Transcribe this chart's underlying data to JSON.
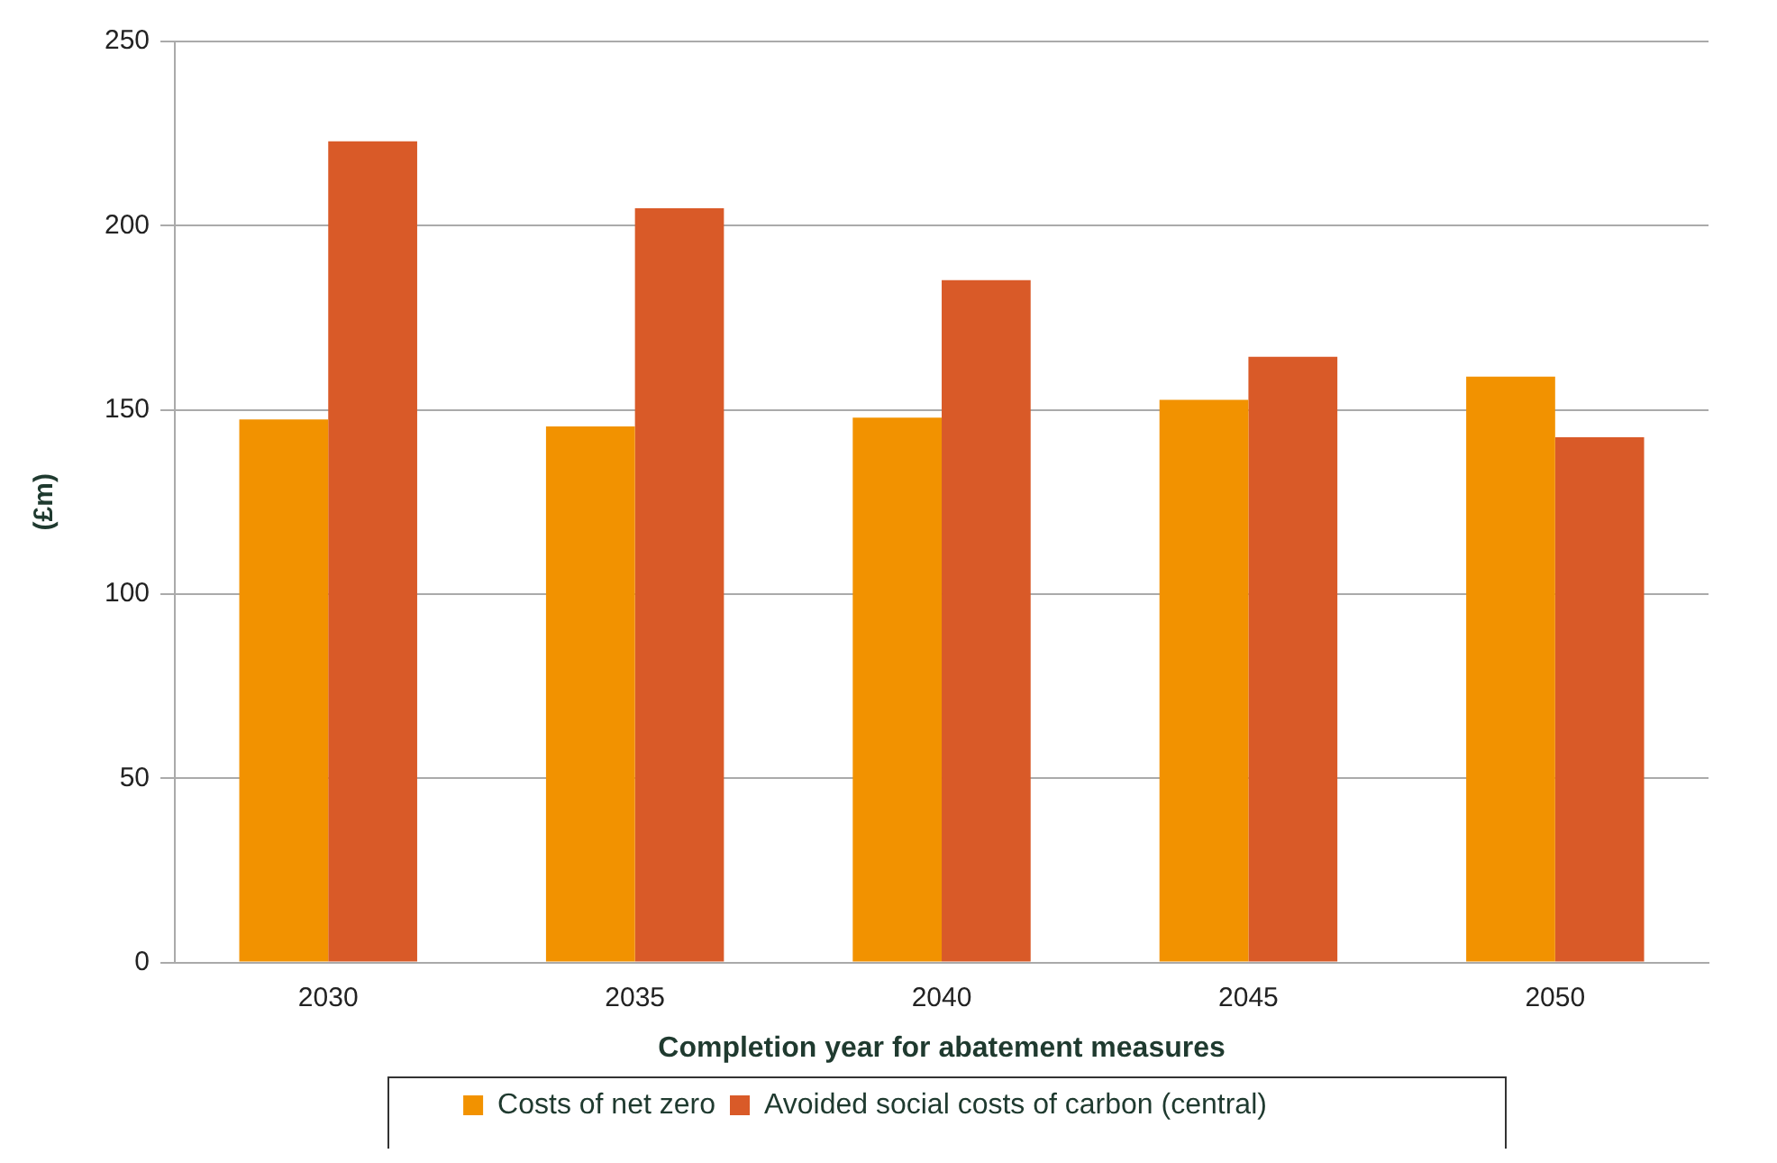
{
  "chart_data": {
    "type": "bar",
    "xlabel": "Completion year for abatement measures",
    "ylabel": "(£m)",
    "categories": [
      "2030",
      "2035",
      "2040",
      "2045",
      "2050"
    ],
    "series": [
      {
        "name": "Costs of net zero",
        "color": "#f29200",
        "values": [
          147.4,
          145.5,
          147.9,
          152.7,
          159
        ]
      },
      {
        "name": "Avoided social costs of carbon (central)",
        "color": "#d95a28",
        "values": [
          222.9,
          204.7,
          185.2,
          164.4,
          142.6
        ]
      }
    ],
    "ylim": [
      0,
      250
    ],
    "yticks": [
      0,
      50,
      100,
      150,
      200,
      250
    ],
    "grid": "y",
    "legend": "bottom"
  }
}
